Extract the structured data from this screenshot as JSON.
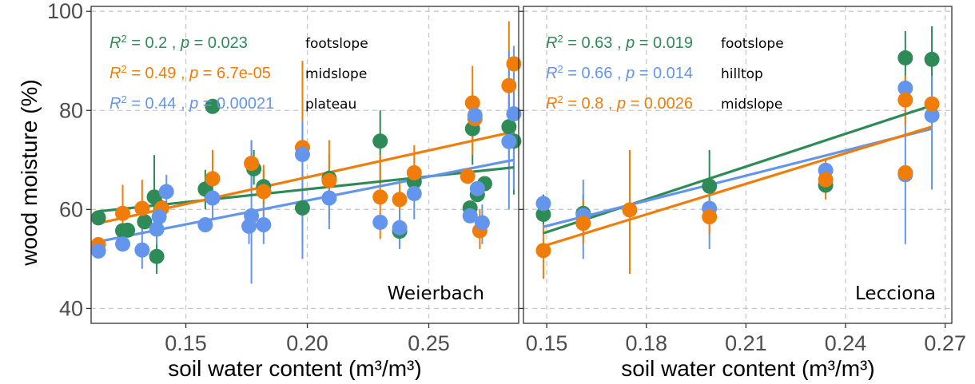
{
  "chart_data": [
    {
      "type": "scatter",
      "site": "Weierbach",
      "xlabel": "soil water content (m³/m³)",
      "ylabel": "wood moisture (%)",
      "xlim": [
        0.111,
        0.287
      ],
      "ylim": [
        37,
        101
      ],
      "xticks": [
        "0.15",
        "0.20",
        "0.25"
      ],
      "xtick_values": [
        0.15,
        0.2,
        0.25
      ],
      "yticks": [
        "40",
        "60",
        "80",
        "100"
      ],
      "ytick_values": [
        40,
        60,
        80,
        100
      ],
      "grid": true,
      "annotations": [
        {
          "slope": "footslope",
          "r2": "0.2",
          "p": "0.023",
          "color": "#2e8b57"
        },
        {
          "slope": "midslope",
          "r2": "0.49",
          "p": "6.7e-05",
          "color": "#f07d0a"
        },
        {
          "slope": "plateau",
          "r2": "0.44",
          "p": "0.00021",
          "color": "#6495ed"
        }
      ],
      "series": [
        {
          "name": "footslope",
          "color": "#2e8b57",
          "fit": [
            [
              0.114,
              59.6
            ],
            [
              0.285,
              68.5
            ]
          ],
          "points": [
            [
              0.114,
              58.3,
              0,
              0
            ],
            [
              0.124,
              55.7,
              52,
              60
            ],
            [
              0.126,
              55.8,
              0,
              0
            ],
            [
              0.133,
              57.5,
              0,
              0
            ],
            [
              0.137,
              62.5,
              56,
              71
            ],
            [
              0.138,
              50.5,
              47,
              55
            ],
            [
              0.14,
              60.3,
              0,
              0
            ],
            [
              0.158,
              64.1,
              60,
              68
            ],
            [
              0.161,
              80.8,
              0,
              0
            ],
            [
              0.178,
              68.2,
              65,
              72
            ],
            [
              0.182,
              64.6,
              61,
              68
            ],
            [
              0.198,
              60.3,
              53,
              68
            ],
            [
              0.209,
              66.3,
              61,
              71
            ],
            [
              0.23,
              73.8,
              65,
              80
            ],
            [
              0.238,
              55.6,
              53,
              59
            ],
            [
              0.244,
              65.6,
              0,
              0
            ],
            [
              0.267,
              60.3,
              0,
              0
            ],
            [
              0.268,
              76.3,
              69,
              84
            ],
            [
              0.27,
              63.0,
              0,
              0
            ],
            [
              0.273,
              65.2,
              0,
              0
            ],
            [
              0.283,
              76.7,
              70,
              83
            ],
            [
              0.285,
              73.8,
              63,
              85
            ]
          ]
        },
        {
          "name": "midslope",
          "color": "#f07d0a",
          "fit": [
            [
              0.114,
              57.2
            ],
            [
              0.285,
              75.7
            ]
          ],
          "points": [
            [
              0.114,
              52.9,
              0,
              0
            ],
            [
              0.124,
              59.2,
              53,
              65
            ],
            [
              0.132,
              60.2,
              55,
              66
            ],
            [
              0.14,
              60.2,
              57,
              64
            ],
            [
              0.161,
              66.2,
              60,
              72
            ],
            [
              0.177,
              69.3,
              64,
              74
            ],
            [
              0.182,
              63.6,
              58,
              69
            ],
            [
              0.198,
              72.5,
              62,
              90
            ],
            [
              0.209,
              65.8,
              58,
              74
            ],
            [
              0.23,
              62.5,
              54,
              71
            ],
            [
              0.238,
              62.0,
              58,
              66
            ],
            [
              0.244,
              67.4,
              62,
              73
            ],
            [
              0.266,
              66.7,
              0,
              0
            ],
            [
              0.268,
              81.5,
              71,
              89
            ],
            [
              0.269,
              78.3,
              0,
              0
            ],
            [
              0.271,
              55.7,
              52,
              60
            ],
            [
              0.283,
              85.0,
              77,
              98
            ],
            [
              0.285,
              89.4,
              0,
              0
            ]
          ]
        },
        {
          "name": "plateau",
          "color": "#6495ed",
          "fit": [
            [
              0.114,
              53.5
            ],
            [
              0.285,
              70.0
            ]
          ],
          "points": [
            [
              0.114,
              51.6,
              0,
              0
            ],
            [
              0.124,
              53.0,
              0,
              0
            ],
            [
              0.132,
              51.8,
              48,
              56
            ],
            [
              0.138,
              56.0,
              53,
              59
            ],
            [
              0.139,
              58.5,
              0,
              0
            ],
            [
              0.142,
              63.6,
              60,
              67
            ],
            [
              0.158,
              56.9,
              0,
              0
            ],
            [
              0.161,
              62.3,
              58,
              66
            ],
            [
              0.176,
              56.6,
              53,
              60
            ],
            [
              0.177,
              58.7,
              45,
              74
            ],
            [
              0.182,
              56.9,
              53,
              61
            ],
            [
              0.198,
              71.1,
              50,
              78
            ],
            [
              0.209,
              62.3,
              56,
              68
            ],
            [
              0.23,
              57.4,
              0,
              0
            ],
            [
              0.238,
              56.3,
              52,
              60
            ],
            [
              0.244,
              63.2,
              58,
              68
            ],
            [
              0.267,
              58.7,
              0,
              0
            ],
            [
              0.269,
              79.0,
              0,
              0
            ],
            [
              0.27,
              64.2,
              0,
              0
            ],
            [
              0.272,
              57.3,
              53,
              61
            ],
            [
              0.283,
              73.7,
              60,
              92
            ],
            [
              0.285,
              79.3,
              64,
              93
            ]
          ]
        }
      ]
    },
    {
      "type": "scatter",
      "site": "Lecciona",
      "xlabel": "soil water content (m³/m³)",
      "ylabel": "",
      "xlim": [
        0.143,
        0.272
      ],
      "ylim": [
        37,
        101
      ],
      "xticks": [
        "0.15",
        "0.18",
        "0.21",
        "0.24",
        "0.27"
      ],
      "xtick_values": [
        0.15,
        0.18,
        0.21,
        0.24,
        0.27
      ],
      "yticks": [],
      "ytick_values": [
        40,
        60,
        80,
        100
      ],
      "grid": true,
      "annotations": [
        {
          "slope": "footslope",
          "r2": "0.63",
          "p": "0.019",
          "color": "#2e8b57"
        },
        {
          "slope": "hilltop",
          "r2": "0.66",
          "p": "0.014",
          "color": "#6495ed"
        },
        {
          "slope": "midslope",
          "r2": "0.8",
          "p": "0.0026",
          "color": "#f07d0a"
        }
      ],
      "series": [
        {
          "name": "footslope",
          "color": "#2e8b57",
          "fit": [
            [
              0.149,
              55.2
            ],
            [
              0.266,
              81.0
            ]
          ],
          "points": [
            [
              0.149,
              59.0,
              55,
              63
            ],
            [
              0.161,
              59.2,
              55,
              63
            ],
            [
              0.199,
              64.7,
              58,
              72
            ],
            [
              0.234,
              64.9,
              63,
              67
            ],
            [
              0.258,
              90.6,
              85,
              96
            ],
            [
              0.266,
              90.3,
              83,
              97
            ]
          ]
        },
        {
          "name": "hilltop",
          "color": "#6495ed",
          "fit": [
            [
              0.149,
              56.5
            ],
            [
              0.266,
              76.3
            ]
          ],
          "points": [
            [
              0.149,
              61.2,
              0,
              0
            ],
            [
              0.161,
              58.8,
              50,
              66
            ],
            [
              0.199,
              60.2,
              52,
              66
            ],
            [
              0.234,
              67.9,
              0,
              0
            ],
            [
              0.258,
              67.0,
              53,
              80
            ],
            [
              0.258,
              84.5,
              0,
              0
            ],
            [
              0.266,
              79.0,
              64,
              87
            ]
          ]
        },
        {
          "name": "midslope",
          "color": "#f07d0a",
          "fit": [
            [
              0.149,
              52.6
            ],
            [
              0.266,
              76.7
            ]
          ],
          "points": [
            [
              0.149,
              51.7,
              46,
              57
            ],
            [
              0.161,
              57.2,
              53,
              62
            ],
            [
              0.175,
              59.9,
              47,
              72
            ],
            [
              0.199,
              58.5,
              55,
              62
            ],
            [
              0.234,
              66.0,
              62,
              70
            ],
            [
              0.258,
              67.4,
              0,
              0
            ],
            [
              0.258,
              82.1,
              77,
              87
            ],
            [
              0.266,
              81.3,
              0,
              0
            ]
          ]
        }
      ]
    }
  ]
}
